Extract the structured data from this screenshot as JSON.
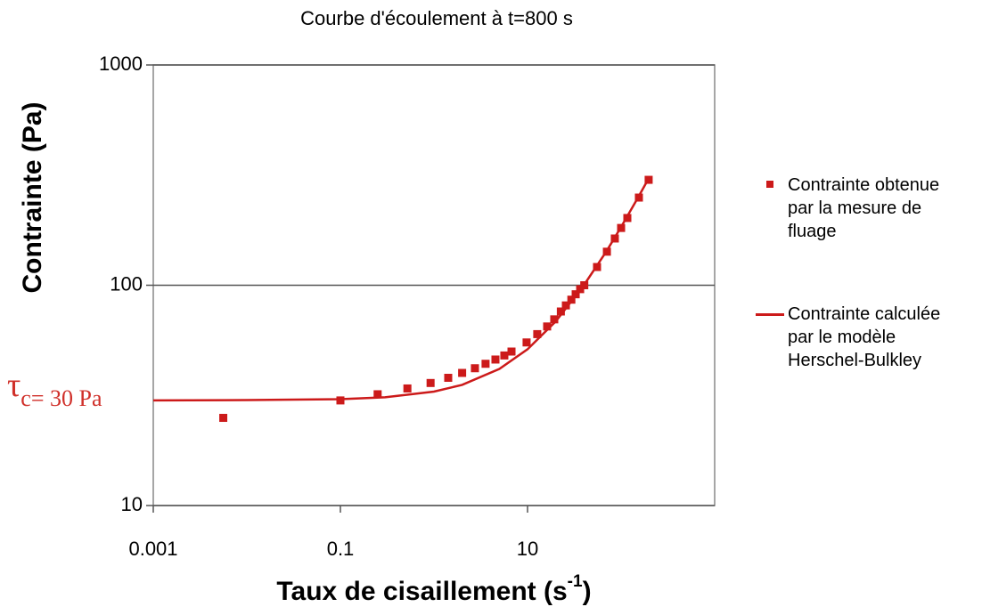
{
  "chart_data": {
    "type": "scatter",
    "title": "Courbe d'écoulement à t=800 s",
    "x_label": [
      "Taux de cisaillement (s",
      "-1",
      ")"
    ],
    "y_label": "Contrainte (Pa)",
    "annotation": [
      "τ",
      "c= 30 Pa"
    ],
    "annotation_color": "#d0302a",
    "xscale": "log",
    "yscale": "log",
    "xlim": [
      0.001,
      1000
    ],
    "ylim": [
      10,
      1000
    ],
    "xticks": [
      0.001,
      0.1,
      10
    ],
    "yticks": [
      10,
      100,
      1000
    ],
    "grid": true,
    "series": [
      {
        "name": "Contrainte obtenue par la mesure de fluage",
        "color": "#cc1a1a",
        "style": "marker",
        "x": [
          0.0056,
          0.1,
          0.25,
          0.52,
          0.92,
          1.42,
          2.0,
          2.74,
          3.56,
          4.54,
          5.65,
          6.74,
          9.77,
          12.7,
          16.2,
          19.3,
          22.7,
          25.7,
          29.4,
          32.7,
          36.5,
          40.4,
          55.3,
          70.5,
          85.7,
          100,
          116.6,
          155,
          197
        ],
        "values": [
          25,
          30,
          32,
          34,
          36,
          38,
          40,
          42,
          44,
          46,
          48,
          50,
          55,
          60,
          65,
          70,
          76,
          81,
          86,
          91,
          96,
          100,
          121,
          142,
          163,
          182,
          202,
          250,
          301
        ]
      },
      {
        "name": "Contrainte calculée par le modèle Herschel-Bulkley",
        "color": "#cc1a1a",
        "style": "line",
        "x": [
          0.001,
          0.01,
          0.1,
          0.3,
          1,
          2,
          5,
          10,
          20,
          40,
          70,
          100,
          150,
          200
        ],
        "values": [
          30,
          30.1,
          30.4,
          31,
          32.9,
          35.3,
          41.7,
          51.2,
          68.5,
          100,
          143,
          184,
          248,
          309
        ]
      }
    ]
  }
}
